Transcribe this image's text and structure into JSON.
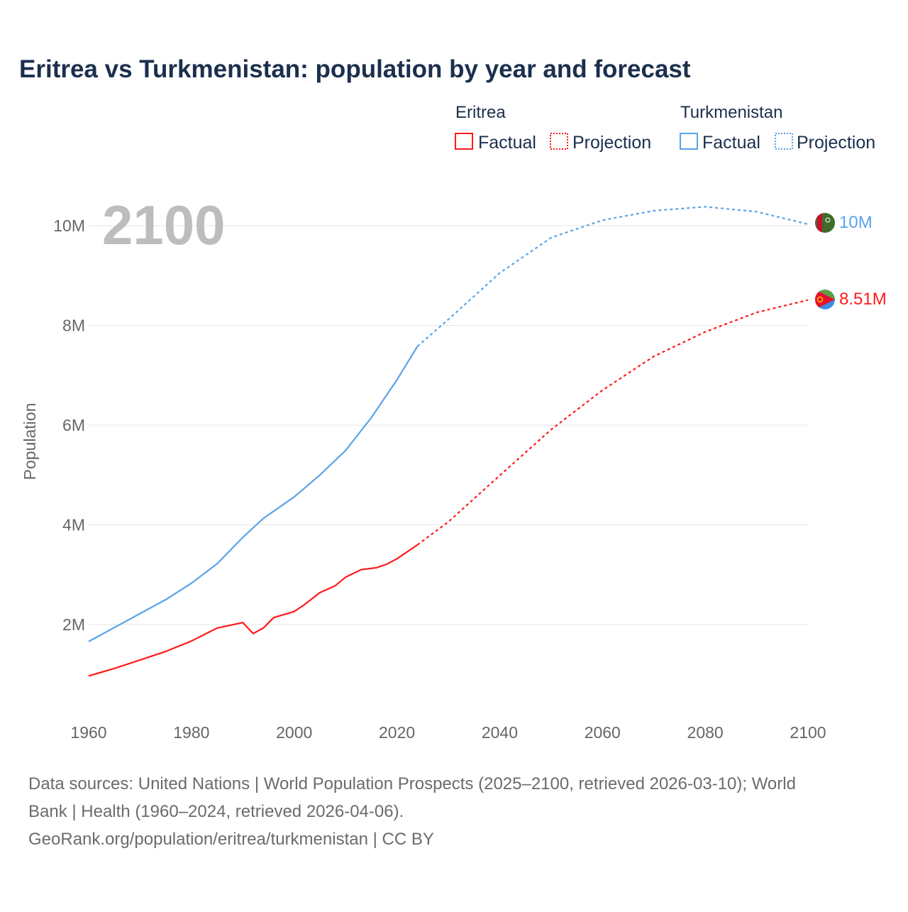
{
  "chart_data": {
    "type": "line",
    "title": "Eritrea vs Turkmenistan: population by year and forecast",
    "ylabel": "Population",
    "xlabel": "",
    "xlim": [
      1960,
      2100
    ],
    "ylim": [
      0,
      11000000
    ],
    "x_ticks": [
      1960,
      1980,
      2000,
      2020,
      2040,
      2060,
      2080,
      2100
    ],
    "x_tick_labels": [
      "1960",
      "1980",
      "2000",
      "2020",
      "2040",
      "2060",
      "2080",
      "2100"
    ],
    "y_ticks": [
      2000000,
      4000000,
      6000000,
      8000000,
      10000000
    ],
    "y_tick_labels": [
      "2M",
      "4M",
      "6M",
      "8M",
      "10M"
    ],
    "grid": true,
    "current_year_label": "2100",
    "legend": {
      "placement": "top-right",
      "groups": [
        {
          "country": "Eritrea",
          "factual": "Factual",
          "projection": "Projection"
        },
        {
          "country": "Turkmenistan",
          "factual": "Factual",
          "projection": "Projection"
        }
      ]
    },
    "series": [
      {
        "name": "Turkmenistan",
        "color": "#5ba3e8",
        "end_label": "10M",
        "flag": "turkmenistan-flag",
        "factual": [
          [
            1960,
            1660000.0
          ],
          [
            1965,
            1940000.0
          ],
          [
            1970,
            2220000.0
          ],
          [
            1975,
            2500000.0
          ],
          [
            1980,
            2830000.0
          ],
          [
            1985,
            3220000.0
          ],
          [
            1990,
            3750000.0
          ],
          [
            1994,
            4130000.0
          ],
          [
            2000,
            4560000.0
          ],
          [
            2005,
            5000000.0
          ],
          [
            2010,
            5490000.0
          ],
          [
            2015,
            6150000.0
          ],
          [
            2020,
            6910000.0
          ],
          [
            2024,
            7580000.0
          ]
        ],
        "projection": [
          [
            2024,
            7580000.0
          ],
          [
            2030,
            8120000.0
          ],
          [
            2040,
            9050000.0
          ],
          [
            2050,
            9760000.0
          ],
          [
            2060,
            10110000.0
          ],
          [
            2070,
            10300000.0
          ],
          [
            2080,
            10380000.0
          ],
          [
            2090,
            10280000.0
          ],
          [
            2100,
            10030000.0
          ]
        ]
      },
      {
        "name": "Eritrea",
        "color": "#ff1a1a",
        "end_label": "8.51M",
        "flag": "eritrea-flag",
        "factual": [
          [
            1960,
            970000.0
          ],
          [
            1965,
            1120000.0
          ],
          [
            1970,
            1290000.0
          ],
          [
            1975,
            1460000.0
          ],
          [
            1980,
            1670000.0
          ],
          [
            1985,
            1930000.0
          ],
          [
            1990,
            2040000.0
          ],
          [
            1992,
            1820000.0
          ],
          [
            1994,
            1930000.0
          ],
          [
            1996,
            2140000.0
          ],
          [
            2000,
            2260000.0
          ],
          [
            2002,
            2400000.0
          ],
          [
            2005,
            2640000.0
          ],
          [
            2008,
            2780000.0
          ],
          [
            2010,
            2950000.0
          ],
          [
            2013,
            3100000.0
          ],
          [
            2016,
            3140000.0
          ],
          [
            2018,
            3210000.0
          ],
          [
            2020,
            3320000.0
          ],
          [
            2024,
            3600000.0
          ]
        ],
        "projection": [
          [
            2024,
            3600000.0
          ],
          [
            2030,
            4060000.0
          ],
          [
            2040,
            4990000.0
          ],
          [
            2050,
            5910000.0
          ],
          [
            2060,
            6700000.0
          ],
          [
            2070,
            7380000.0
          ],
          [
            2080,
            7870000.0
          ],
          [
            2090,
            8260000.0
          ],
          [
            2100,
            8510000.0
          ]
        ]
      }
    ]
  },
  "footer": {
    "line1": "Data sources: United Nations | World Population Prospects (2025–2100, retrieved 2026-03-10); World",
    "line2": "Bank | Health (1960–2024, retrieved 2026-04-06).",
    "line3": "GeoRank.org/population/eritrea/turkmenistan | CC BY"
  }
}
